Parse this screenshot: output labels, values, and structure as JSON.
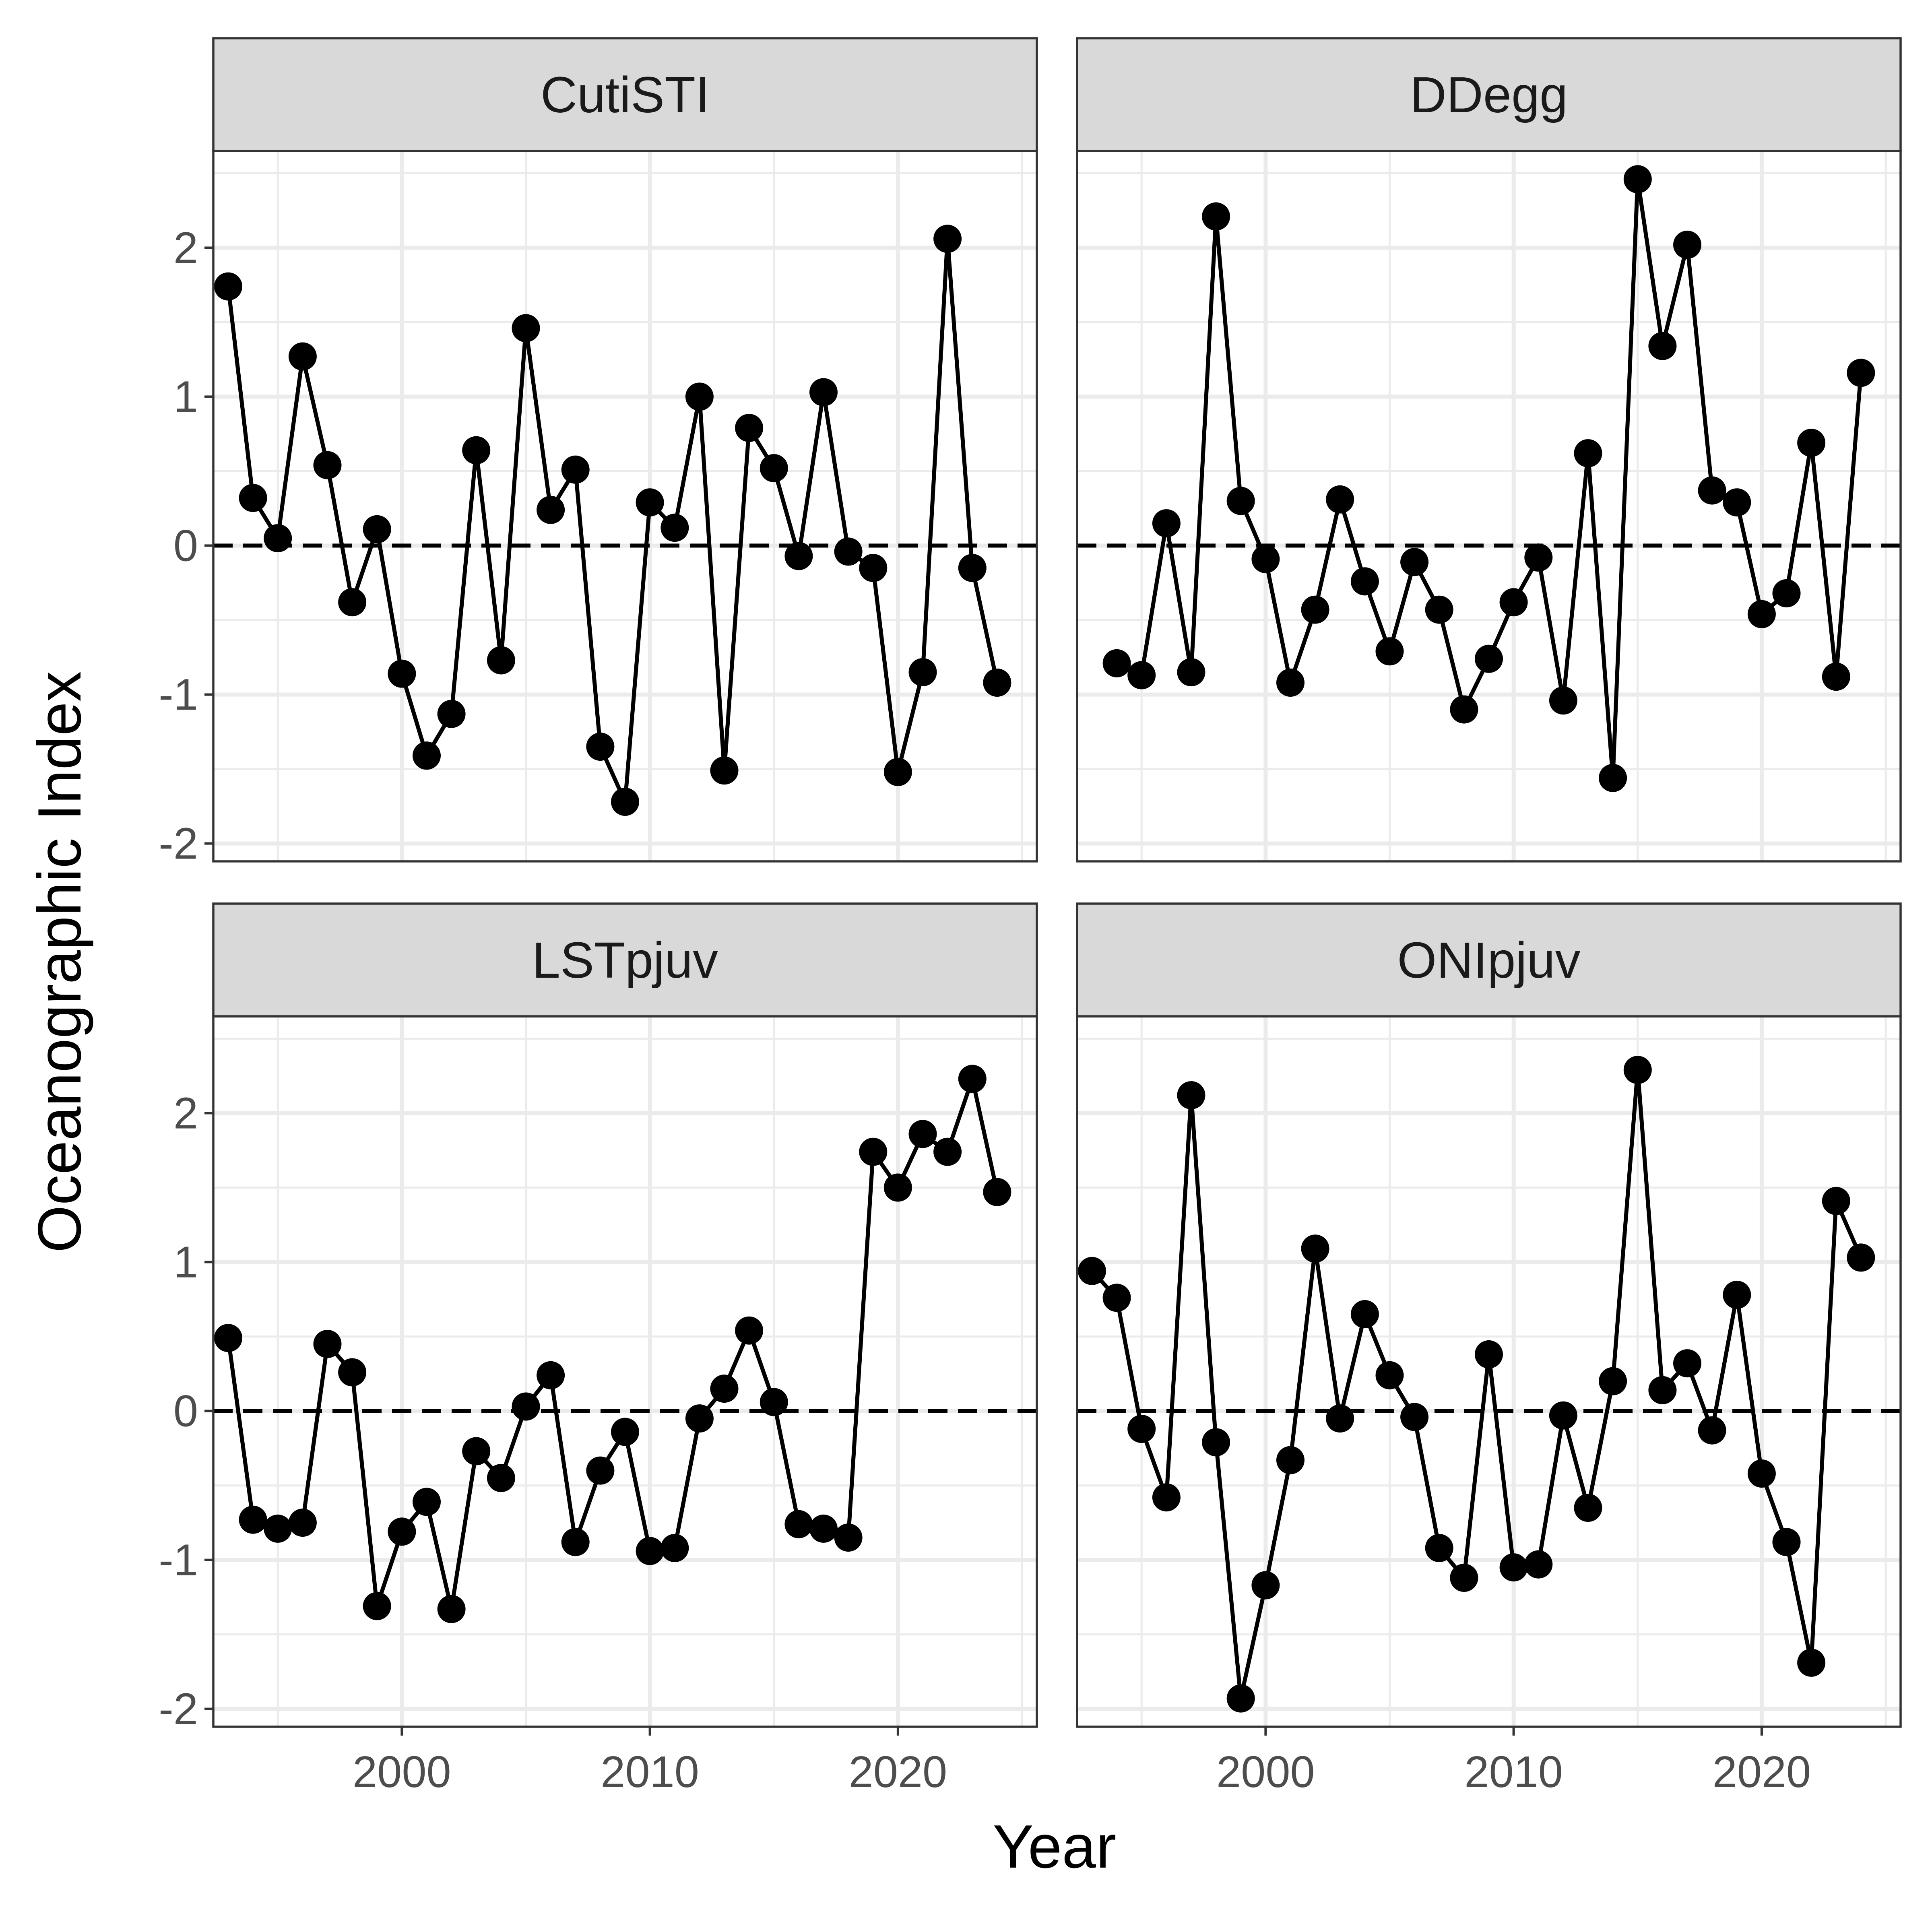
{
  "chart_data": {
    "type": "line",
    "xlabel": "Year",
    "ylabel": "Oceanographic Index",
    "xlim": [
      1992.4,
      2025.6
    ],
    "ylim": [
      -2.12,
      2.65
    ],
    "x_ticks": [
      2000,
      2010,
      2020
    ],
    "y_ticks": [
      -2,
      -1,
      0,
      1,
      2
    ],
    "reference_line": {
      "y": 0,
      "style": "dashed"
    },
    "grid": true,
    "facets": [
      {
        "name": "CutiSTI",
        "x": [
          1993,
          1994,
          1995,
          1996,
          1997,
          1998,
          1999,
          2000,
          2001,
          2002,
          2003,
          2004,
          2005,
          2006,
          2007,
          2008,
          2009,
          2010,
          2011,
          2012,
          2013,
          2014,
          2015,
          2016,
          2017,
          2018,
          2019,
          2020,
          2021,
          2022,
          2023,
          2024
        ],
        "values": [
          1.74,
          0.32,
          0.05,
          1.27,
          0.54,
          -0.38,
          0.11,
          -0.86,
          -1.41,
          -1.13,
          0.64,
          -0.77,
          1.46,
          0.24,
          0.51,
          -1.35,
          -1.72,
          0.29,
          0.12,
          1.0,
          -1.51,
          0.79,
          0.52,
          -0.07,
          1.03,
          -0.04,
          -0.15,
          -1.52,
          -0.85,
          2.06,
          -0.15,
          -0.92
        ]
      },
      {
        "name": "DDegg",
        "x": [
          1994,
          1995,
          1996,
          1997,
          1998,
          1999,
          2000,
          2001,
          2002,
          2003,
          2004,
          2005,
          2006,
          2007,
          2008,
          2009,
          2010,
          2011,
          2012,
          2013,
          2014,
          2015,
          2016,
          2017,
          2018,
          2019,
          2020,
          2021,
          2022,
          2023,
          2024
        ],
        "values": [
          -0.79,
          -0.87,
          0.15,
          -0.85,
          2.21,
          0.3,
          -0.09,
          -0.92,
          -0.43,
          0.31,
          -0.24,
          -0.71,
          -0.11,
          -0.43,
          -1.1,
          -0.76,
          -0.38,
          -0.08,
          -1.04,
          0.62,
          -1.56,
          2.46,
          1.34,
          2.02,
          0.37,
          0.29,
          -0.46,
          -0.32,
          0.69,
          -0.88,
          1.16
        ]
      },
      {
        "name": "LSTpjuv",
        "x": [
          1993,
          1994,
          1995,
          1996,
          1997,
          1998,
          1999,
          2000,
          2001,
          2002,
          2003,
          2004,
          2005,
          2006,
          2007,
          2008,
          2009,
          2010,
          2011,
          2012,
          2013,
          2014,
          2015,
          2016,
          2017,
          2018,
          2019,
          2020,
          2021,
          2022,
          2023,
          2024
        ],
        "values": [
          0.49,
          -0.73,
          -0.79,
          -0.75,
          0.45,
          0.26,
          -1.31,
          -0.81,
          -0.61,
          -1.33,
          -0.27,
          -0.45,
          0.03,
          0.24,
          -0.88,
          -0.4,
          -0.14,
          -0.94,
          -0.92,
          -0.05,
          0.15,
          0.54,
          0.06,
          -0.76,
          -0.79,
          -0.85,
          1.74,
          1.5,
          1.86,
          1.74,
          2.23,
          1.47
        ]
      },
      {
        "name": "ONIpjuv",
        "x": [
          1993,
          1994,
          1995,
          1996,
          1997,
          1998,
          1999,
          2000,
          2001,
          2002,
          2003,
          2004,
          2005,
          2006,
          2007,
          2008,
          2009,
          2010,
          2011,
          2012,
          2013,
          2014,
          2015,
          2016,
          2017,
          2018,
          2019,
          2020,
          2021,
          2022,
          2023,
          2024
        ],
        "values": [
          0.94,
          0.76,
          -0.12,
          -0.58,
          2.12,
          -0.21,
          -1.93,
          -1.17,
          -0.33,
          1.09,
          -0.05,
          0.65,
          0.24,
          -0.04,
          -0.92,
          -1.12,
          0.38,
          -1.05,
          -1.03,
          -0.03,
          -0.65,
          0.2,
          2.29,
          0.14,
          0.32,
          -0.13,
          0.78,
          -0.42,
          -0.88,
          -1.69,
          1.41,
          1.03
        ]
      }
    ]
  }
}
